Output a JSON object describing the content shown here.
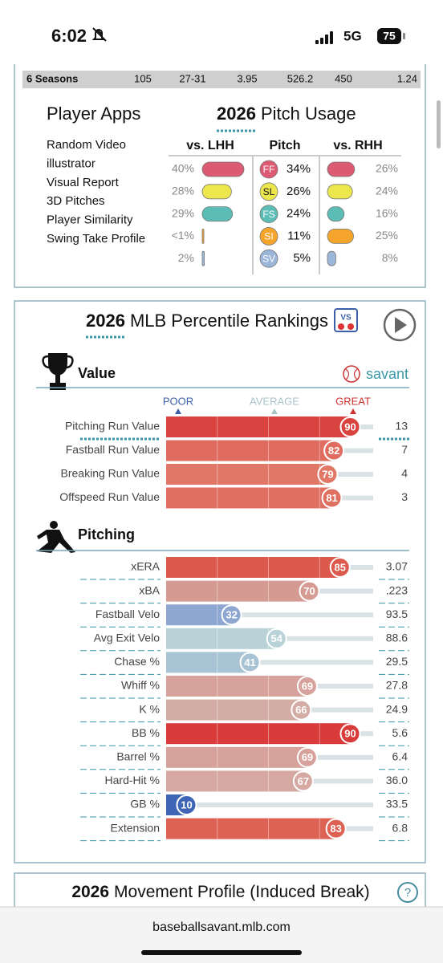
{
  "status_bar": {
    "time": "6:02",
    "network": "5G",
    "battery": "75"
  },
  "seasons_row": {
    "label": "6 Seasons",
    "cells": [
      "105",
      "27-31",
      "3.95",
      "526.2",
      "450",
      "1.24"
    ]
  },
  "player_apps": {
    "title": "Player Apps",
    "links": [
      "Random Video",
      "illustrator",
      "Visual Report",
      "3D Pitches",
      "Player Similarity",
      "Swing Take Profile"
    ]
  },
  "pitch_usage": {
    "year": "2026",
    "title": "Pitch Usage",
    "headers": [
      "vs. LHH",
      "Pitch",
      "vs. RHH"
    ],
    "rows": [
      {
        "vs_lhh": "40%",
        "pitch": "FF",
        "usage": "34%",
        "vs_rhh": "26%",
        "color": "#dc5a72"
      },
      {
        "vs_lhh": "28%",
        "pitch": "SL",
        "usage": "26%",
        "vs_rhh": "24%",
        "color": "#ece74c"
      },
      {
        "vs_lhh": "29%",
        "pitch": "FS",
        "usage": "24%",
        "vs_rhh": "16%",
        "color": "#5bbdb6"
      },
      {
        "vs_lhh": "<1%",
        "pitch": "SI",
        "usage": "11%",
        "vs_rhh": "25%",
        "color": "#f6a52c"
      },
      {
        "vs_lhh": "2%",
        "pitch": "SV",
        "usage": "5%",
        "vs_rhh": "8%",
        "color": "#9cb6da"
      }
    ]
  },
  "percentile_rankings": {
    "year": "2026",
    "title": "MLB Percentile Rankings",
    "badge": "VS",
    "brand": "savant",
    "scale": [
      "POOR",
      "AVERAGE",
      "GREAT"
    ],
    "sections": [
      {
        "title": "Value",
        "rows": [
          {
            "label": "Pitching Run Value",
            "percentile": 90,
            "value": "13",
            "color": "#d8433f"
          },
          {
            "label": "Fastball Run Value",
            "percentile": 82,
            "value": "7",
            "color": "#df6c5f"
          },
          {
            "label": "Breaking Run Value",
            "percentile": 79,
            "value": "4",
            "color": "#e07767"
          },
          {
            "label": "Offspeed Run Value",
            "percentile": 81,
            "value": "3",
            "color": "#df6f61"
          }
        ]
      },
      {
        "title": "Pitching",
        "rows": [
          {
            "label": "xERA",
            "percentile": 85,
            "value": "3.07",
            "color": "#dc5a4d"
          },
          {
            "label": "xBA",
            "percentile": 70,
            "value": ".223",
            "color": "#d59a92"
          },
          {
            "label": "Fastball Velo",
            "percentile": 32,
            "value": "93.5",
            "color": "#8ea7d0"
          },
          {
            "label": "Avg Exit Velo",
            "percentile": 54,
            "value": "88.6",
            "color": "#b8d2d7"
          },
          {
            "label": "Chase %",
            "percentile": 41,
            "value": "29.5",
            "color": "#a8c3d3"
          },
          {
            "label": "Whiff %",
            "percentile": 69,
            "value": "27.8",
            "color": "#d6a29b"
          },
          {
            "label": "K %",
            "percentile": 66,
            "value": "24.9",
            "color": "#d3aca5"
          },
          {
            "label": "BB %",
            "percentile": 90,
            "value": "5.6",
            "color": "#d83b3a"
          },
          {
            "label": "Barrel %",
            "percentile": 69,
            "value": "6.4",
            "color": "#d6a29b"
          },
          {
            "label": "Hard-Hit %",
            "percentile": 67,
            "value": "36.0",
            "color": "#d5a8a1"
          },
          {
            "label": "GB %",
            "percentile": 10,
            "value": "33.5",
            "color": "#3f66b6"
          },
          {
            "label": "Extension",
            "percentile": 83,
            "value": "6.8",
            "color": "#de6253"
          }
        ]
      }
    ]
  },
  "movement_profile": {
    "year": "2026",
    "title": "Movement Profile (Induced Break)"
  },
  "browser": {
    "url": "baseballsavant.mlb.com"
  }
}
